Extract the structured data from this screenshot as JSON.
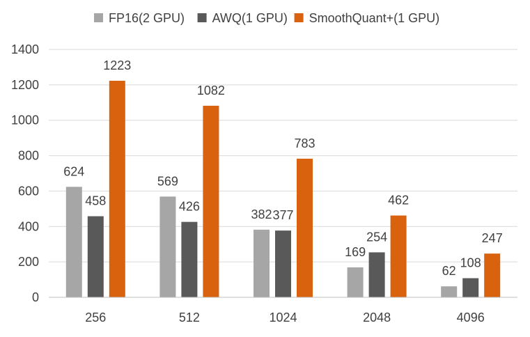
{
  "chart_data": {
    "type": "bar",
    "title": "",
    "xlabel": "",
    "ylabel": "",
    "categories": [
      "256",
      "512",
      "1024",
      "2048",
      "4096"
    ],
    "ylim": [
      0,
      1400
    ],
    "yticks": [
      0,
      200,
      400,
      600,
      800,
      1000,
      1200,
      1400
    ],
    "grid": true,
    "legend_position": "top",
    "series": [
      {
        "name": "FP16(2 GPU)",
        "color": "#a6a6a6",
        "values": [
          624,
          569,
          382,
          169,
          62
        ]
      },
      {
        "name": "AWQ(1 GPU)",
        "color": "#595959",
        "values": [
          458,
          426,
          377,
          254,
          108
        ]
      },
      {
        "name": "SmoothQuant+(1 GPU)",
        "color": "#d9620e",
        "values": [
          1223,
          1082,
          783,
          462,
          247
        ]
      }
    ]
  }
}
